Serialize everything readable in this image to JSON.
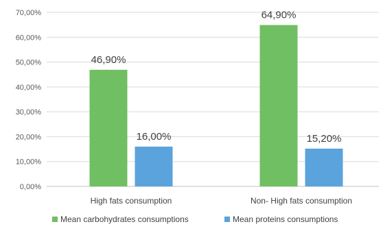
{
  "chart_data": {
    "type": "bar",
    "title": "",
    "xlabel": "",
    "ylabel": "",
    "categories": [
      "High fats consumption",
      "Non- High fats consumption"
    ],
    "series": [
      {
        "name": "Mean carbohydrates consumptions",
        "values": [
          46.9,
          64.9
        ],
        "labels": [
          "46,90%",
          "64,90%"
        ],
        "color": "#70bf63"
      },
      {
        "name": "Mean proteins consumptions",
        "values": [
          16.0,
          15.2
        ],
        "labels": [
          "16,00%",
          "15,20%"
        ],
        "color": "#5ba3dc"
      }
    ],
    "ylim": [
      0,
      70
    ],
    "yticks": [
      0,
      10,
      20,
      30,
      40,
      50,
      60,
      70
    ],
    "ytick_labels": [
      "0,00%",
      "10,00%",
      "20,00%",
      "30,00%",
      "40,00%",
      "50,00%",
      "60,00%",
      "70,00%"
    ],
    "grid": true,
    "legend_position": "bottom"
  }
}
